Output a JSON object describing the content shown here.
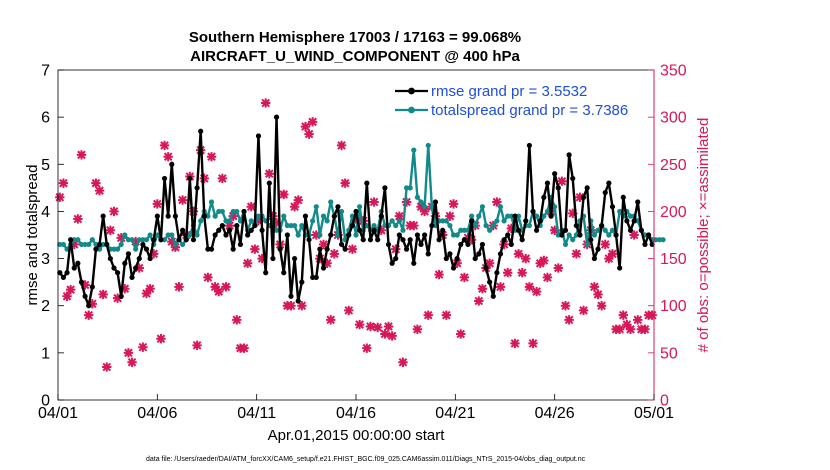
{
  "chart_data": {
    "type": "line",
    "title": [
      "Southern Hemisphere 17003 / 17163 = 99.068%",
      "AIRCRAFT_U_WIND_COMPONENT @ 400 hPa"
    ],
    "xlabel": "Apr.01,2015 00:00:00 start",
    "ylabel_left": "rmse and totalspread",
    "ylabel_right": "# of obs: o=possible; ×=assimilated",
    "x_ticks": [
      "04/01",
      "04/06",
      "04/11",
      "04/16",
      "04/21",
      "04/26",
      "05/01"
    ],
    "ylim_left": [
      0,
      7
    ],
    "yticks_left": [
      "0",
      "1",
      "2",
      "3",
      "4",
      "5",
      "6",
      "7"
    ],
    "ylim_right": [
      0,
      350
    ],
    "yticks_right": [
      "0",
      "50",
      "100",
      "150",
      "200",
      "250",
      "300",
      "350"
    ],
    "colors": {
      "rmse": "#000000",
      "spread": "#138a8a",
      "obs": "#d6175a",
      "right_axis": "#d6175a",
      "legend_text": "#1f4fd8"
    },
    "legend": [
      "rmse grand pr = 3.5532",
      "totalspread grand pr = 3.7386"
    ],
    "footer": "data file: /Users/raeder/DAI/ATM_forcXX/CAM6_setup/f.e21.FHIST_BGC.f09_025.CAM6assim.011/Diags_NTrS_2015-04/obs_diag_output.nc",
    "series": [
      {
        "name": "rmse",
        "values": [
          2.7,
          2.6,
          2.7,
          3.4,
          2.8,
          2.9,
          2.5,
          2.2,
          2.0,
          2.4,
          3.2,
          3.3,
          3.9,
          3.3,
          3.0,
          2.8,
          2.7,
          2.2,
          2.9,
          3.1,
          2.6,
          2.8,
          3.0,
          3.3,
          3.2,
          3.0,
          3.4,
          3.9,
          3.4,
          4.7,
          3.9,
          5.0,
          3.9,
          3.4,
          3.6,
          3.4,
          4.7,
          3.4,
          4.5,
          5.7,
          3.9,
          3.2,
          3.2,
          3.5,
          3.6,
          3.7,
          3.5,
          3.6,
          3.2,
          3.7,
          3.3,
          4.0,
          3.5,
          3.6,
          3.7,
          5.6,
          3.6,
          2.7,
          4.6,
          3.0,
          6.0,
          3.2,
          2.7,
          3.5,
          2.2,
          3.0,
          2.1,
          2.5,
          3.9,
          3.4,
          2.6,
          2.6,
          3.2,
          2.8,
          3.2,
          3.5,
          3.9,
          4.1,
          3.3,
          3.2,
          3.5,
          3.7,
          4.0,
          3.6,
          3.4,
          4.6,
          3.4,
          3.6,
          3.4,
          3.9,
          4.5,
          3.3,
          2.9,
          3.0,
          3.5,
          3.4,
          3.2,
          3.4,
          2.9,
          3.5,
          3.3,
          3.5,
          3.1,
          3.7,
          4.2,
          3.4,
          3.6,
          3.0,
          3.1,
          2.8,
          3.0,
          3.3,
          3.4,
          3.3,
          3.8,
          3.0,
          3.1,
          3.3,
          2.8,
          2.5,
          2.2,
          2.7,
          3.1,
          3.4,
          3.5,
          3.3,
          3.9,
          3.6,
          3.4,
          3.8,
          5.4,
          4.0,
          3.6,
          3.8,
          4.3,
          4.6,
          3.9,
          4.8,
          4.5,
          3.5,
          3.6,
          5.2,
          4.7,
          3.7,
          3.5,
          4.3,
          4.5,
          3.4,
          3.0,
          3.2,
          3.7,
          4.4,
          4.6,
          4.1,
          3.5,
          2.8,
          4.3,
          3.8,
          3.6,
          3.8,
          4.2,
          3.6,
          3.3,
          3.5,
          3.3
        ]
      },
      {
        "name": "totalspread",
        "values": [
          3.3,
          3.3,
          3.2,
          3.3,
          3.4,
          3.4,
          3.3,
          3.3,
          3.3,
          3.4,
          3.3,
          3.2,
          3.3,
          3.3,
          3.2,
          3.2,
          3.2,
          3.3,
          3.5,
          3.4,
          3.4,
          3.2,
          3.4,
          3.4,
          3.4,
          3.5,
          3.3,
          3.5,
          3.4,
          3.4,
          3.5,
          3.5,
          3.3,
          3.4,
          3.3,
          3.4,
          3.5,
          3.7,
          3.5,
          3.8,
          4.0,
          3.9,
          4.2,
          3.9,
          4.0,
          4.0,
          3.8,
          3.8,
          4.0,
          4.0,
          3.8,
          4.0,
          3.6,
          3.8,
          3.7,
          3.9,
          3.9,
          3.8,
          3.7,
          3.8,
          3.6,
          3.6,
          3.9,
          3.7,
          3.7,
          3.7,
          3.5,
          3.7,
          3.5,
          3.5,
          3.8,
          4.1,
          3.5,
          3.9,
          3.8,
          4.2,
          3.9,
          3.5,
          4.0,
          3.4,
          3.6,
          3.9,
          3.5,
          4.1,
          3.6,
          3.7,
          3.6,
          3.7,
          3.6,
          4.0,
          3.7,
          3.7,
          3.8,
          3.7,
          3.8,
          3.6,
          4.5,
          4.5,
          5.3,
          4.3,
          4.2,
          4.1,
          5.4,
          4.1,
          3.7,
          3.8,
          3.8,
          3.8,
          3.7,
          3.5,
          3.5,
          3.6,
          3.6,
          3.6,
          3.9,
          3.7,
          3.9,
          4.1,
          3.7,
          3.6,
          3.7,
          3.8,
          4.1,
          3.8,
          3.9,
          3.9,
          3.6,
          3.9,
          3.6,
          3.7,
          3.7,
          4.0,
          3.9,
          3.7,
          3.9,
          4.0,
          4.3,
          4.1,
          3.5,
          3.6,
          3.3,
          3.5,
          3.4,
          3.5,
          3.8,
          3.9,
          3.3,
          3.8,
          3.5,
          3.6,
          3.7,
          3.6,
          3.5,
          3.6,
          3.5,
          4.0,
          3.9,
          4.0,
          3.9,
          3.9,
          3.8,
          3.6,
          3.5,
          3.5,
          3.4,
          3.4,
          3.4,
          3.4
        ]
      },
      {
        "name": "obs_assimilated",
        "values": [
          215,
          230,
          110,
          117,
          165,
          192,
          260,
          122,
          90,
          102,
          230,
          222,
          112,
          35,
          180,
          200,
          108,
          172,
          118,
          50,
          40,
          168,
          140,
          56,
          113,
          118,
          155,
          208,
          65,
          270,
          258,
          168,
          162,
          120,
          212,
          175,
          237,
          200,
          58,
          265,
          235,
          130,
          258,
          120,
          115,
          235,
          120,
          185,
          195,
          85,
          55,
          55,
          145,
          205,
          160,
          190,
          150,
          315,
          240,
          195,
          188,
          165,
          218,
          100,
          100,
          205,
          212,
          100,
          290,
          282,
          295,
          175,
          150,
          165,
          145,
          85,
          155,
          175,
          270,
          230,
          95,
          160,
          192,
          80,
          190,
          55,
          78,
          210,
          77,
          180,
          70,
          78,
          68,
          160,
          195,
          40,
          210,
          185,
          185,
          75,
          205,
          200,
          90,
          205,
          195,
          133,
          175,
          90,
          195,
          208,
          145,
          70,
          130,
          172,
          170,
          185,
          105,
          118,
          140,
          145,
          185,
          210,
          120,
          165,
          135,
          182,
          60,
          155,
          135,
          150,
          120,
          60,
          115,
          145,
          148,
          130,
          200,
          180,
          140,
          232,
          100,
          85,
          198,
          155,
          215,
          95,
          165,
          180,
          120,
          112,
          100,
          165,
          150,
          155,
          75,
          75,
          90,
          80,
          75,
          175,
          85,
          75,
          75,
          90,
          90
        ]
      },
      {
        "name": "obs_possible",
        "values": [
          null,
          null,
          null,
          null,
          null,
          null,
          null,
          null,
          null,
          null,
          null,
          null,
          null,
          null,
          null,
          null,
          null,
          null,
          null,
          null,
          null,
          null,
          null,
          null,
          null,
          null,
          null,
          null,
          null,
          null,
          null,
          null,
          null,
          null,
          null,
          null,
          null,
          null,
          null,
          null,
          null,
          null,
          null,
          null,
          null,
          null,
          null,
          null,
          null,
          null,
          null,
          null,
          null,
          null,
          null,
          null,
          null,
          null,
          null,
          null,
          null,
          null,
          218,
          null,
          null,
          null,
          null,
          null,
          null,
          null,
          null,
          null,
          null,
          null,
          null,
          null,
          null,
          null,
          null,
          null,
          null,
          null,
          null,
          null,
          null,
          null,
          null,
          null,
          null,
          null,
          null,
          null,
          null,
          null,
          null,
          null,
          null,
          null,
          null,
          null,
          null,
          null,
          null,
          null,
          null,
          null,
          null,
          null,
          null,
          null,
          null,
          null,
          null,
          null,
          null,
          null,
          null,
          null,
          null,
          null,
          null,
          null,
          null,
          null,
          null,
          null,
          null,
          null,
          null,
          null,
          null,
          null,
          null,
          null,
          null,
          null,
          null,
          null,
          null,
          null,
          null,
          null,
          null,
          null,
          null,
          null,
          null,
          null,
          null,
          null,
          null,
          null,
          null,
          null,
          null,
          null,
          null,
          null,
          null,
          null,
          null,
          null,
          null,
          null,
          null,
          null,
          null,
          null,
          null,
          null,
          null,
          null,
          null,
          null,
          null,
          null,
          null,
          null,
          null,
          null,
          null,
          null,
          null,
          null,
          null,
          null,
          null,
          null
        ]
      }
    ]
  }
}
